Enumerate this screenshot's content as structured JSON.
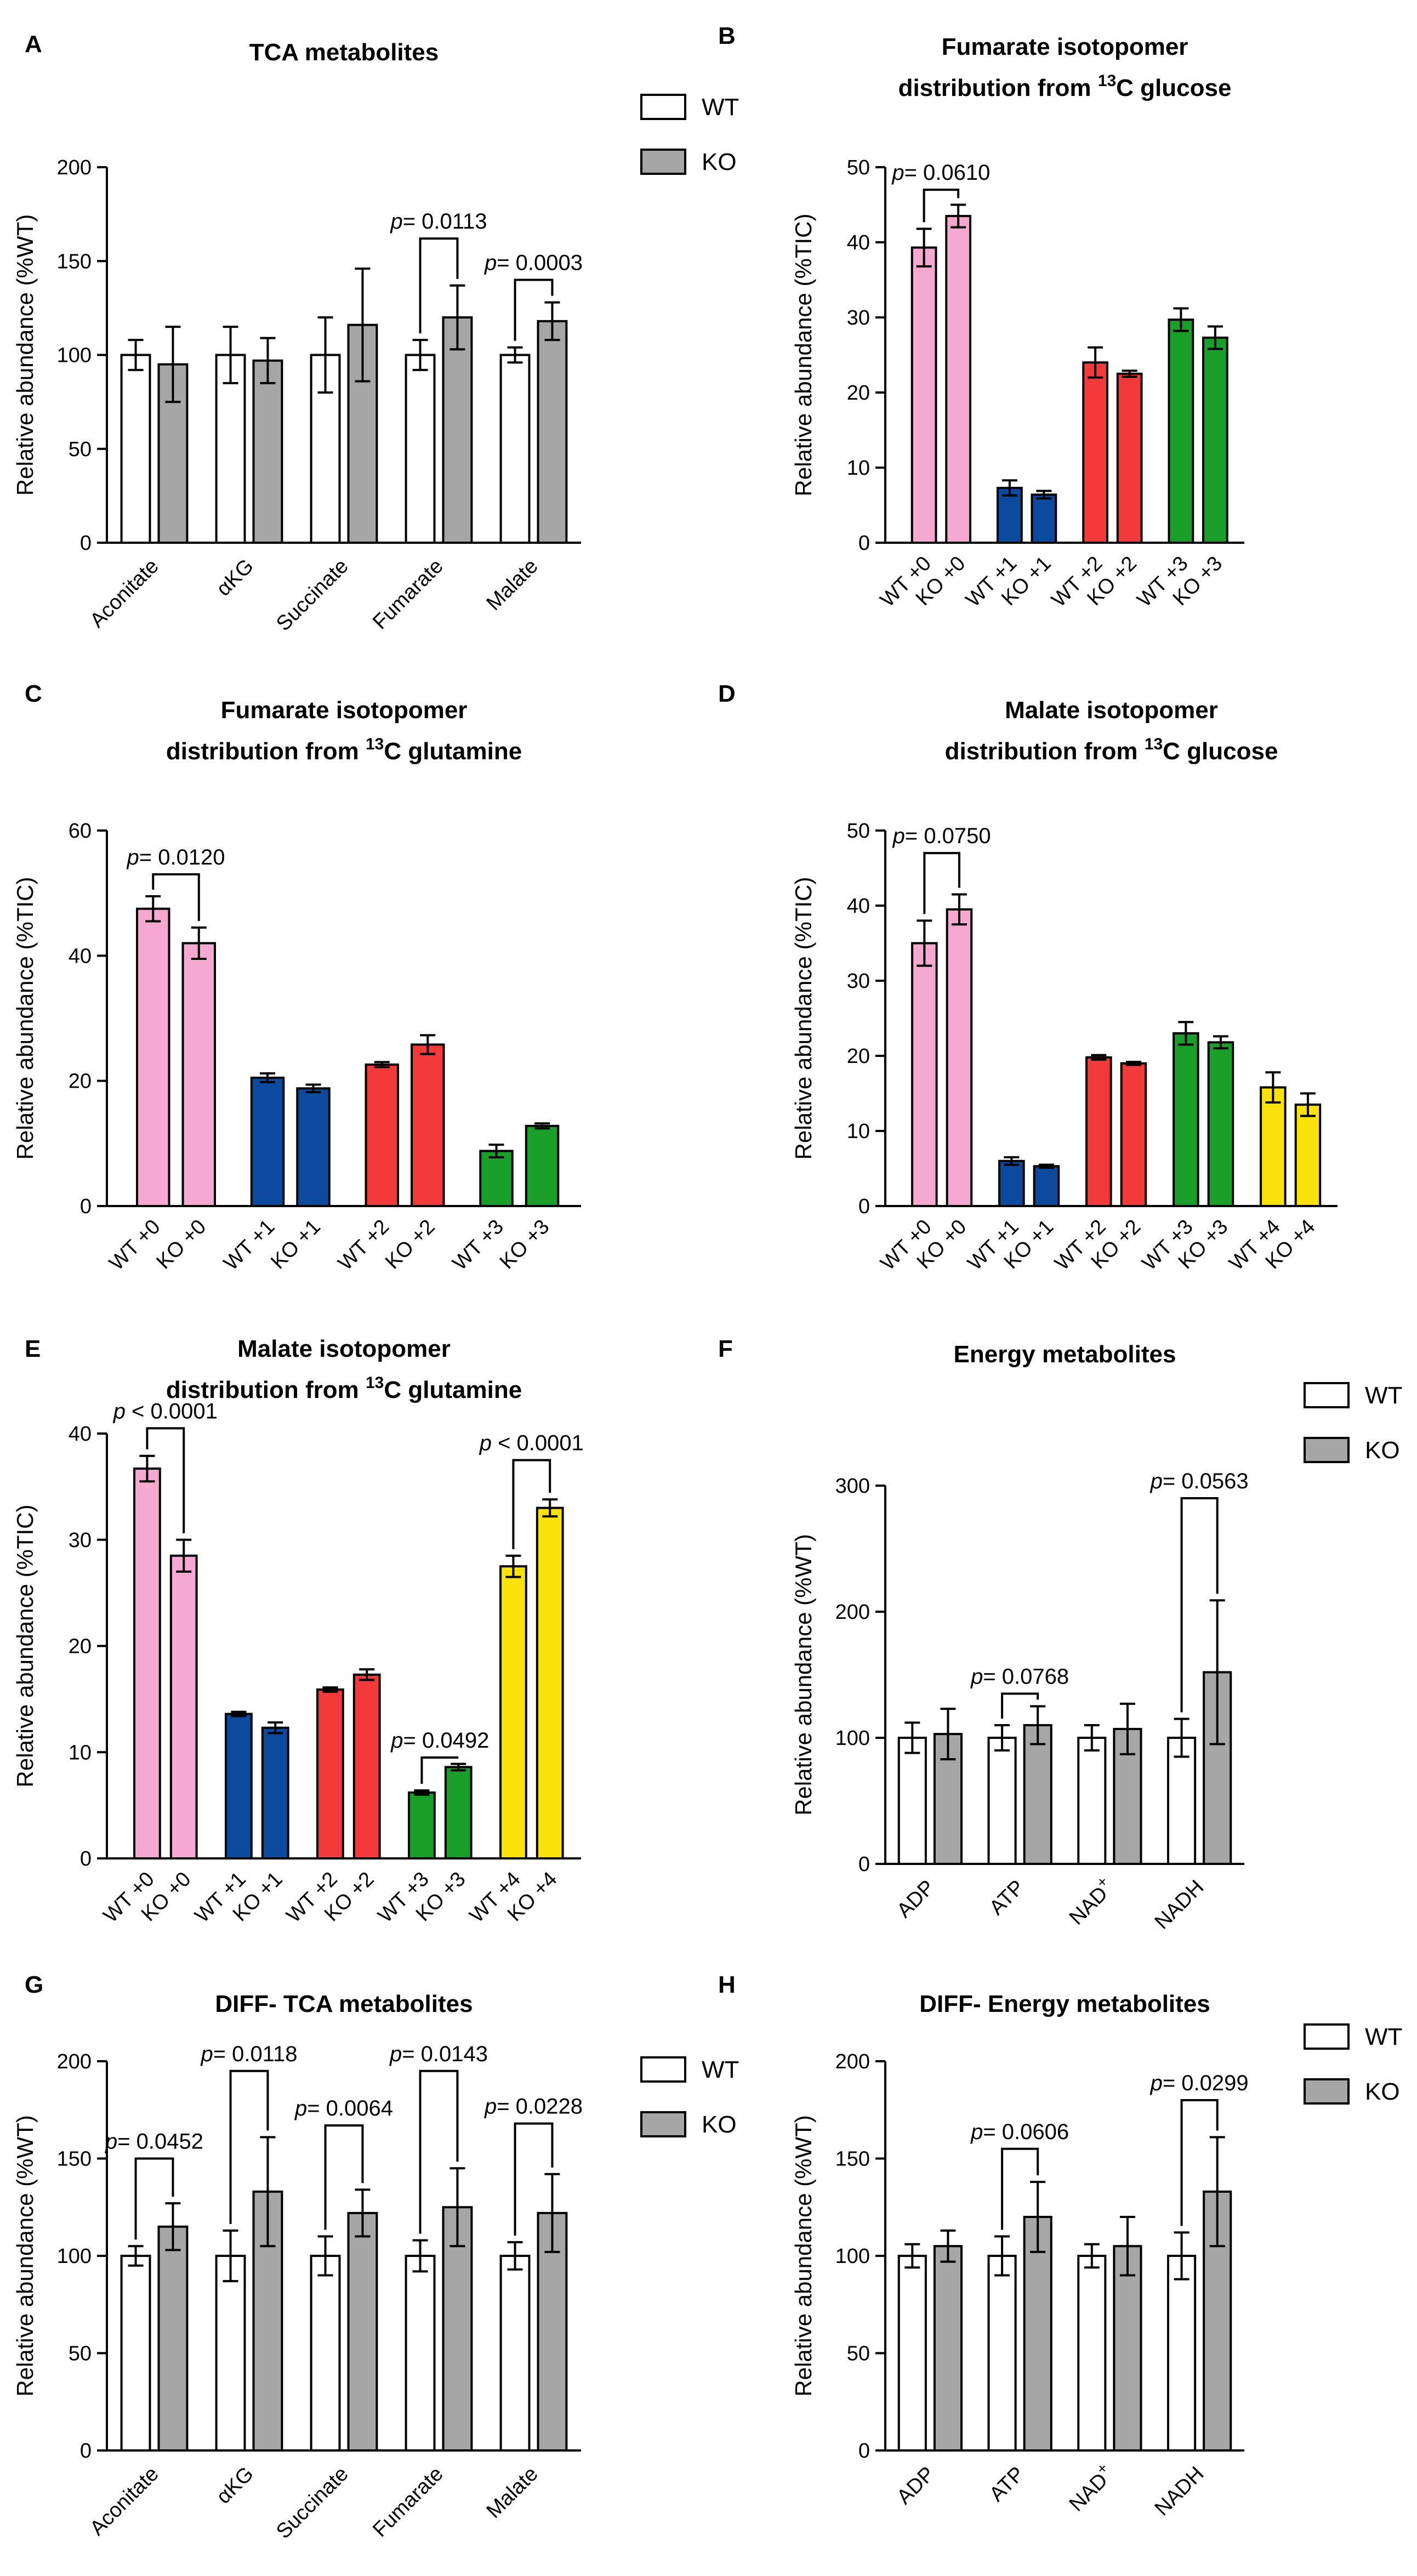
{
  "colors": {
    "wt_fill": "#ffffff",
    "ko_fill": "#a6a6a6",
    "iso0": "#f5a8d0",
    "iso1": "#0b4a9c",
    "iso2": "#f23a3a",
    "iso3": "#1a9e2a",
    "iso4": "#fae10a"
  },
  "chart_data": [
    {
      "id": "A",
      "type": "bar",
      "letter": "A",
      "title": [
        "TCA metabolites"
      ],
      "ylabel": "Relative abundance (%WT)",
      "ylim": [
        0,
        200
      ],
      "yticks": [
        0,
        50,
        100,
        150,
        200
      ],
      "legend": [
        "WT",
        "KO"
      ],
      "legend_position": "top-right",
      "categories": [
        "Aconitate",
        "αKG",
        "Succinate",
        "Fumarate",
        "Malate"
      ],
      "series": [
        {
          "name": "WT",
          "values": [
            100,
            100,
            100,
            100,
            100
          ],
          "sd": [
            8,
            15,
            20,
            8,
            4
          ]
        },
        {
          "name": "KO",
          "values": [
            95,
            97,
            116,
            120,
            118
          ],
          "sd": [
            20,
            12,
            30,
            17,
            10
          ]
        }
      ],
      "pvalues": [
        {
          "text": "p= 0.0113",
          "category": 3,
          "y": 162
        },
        {
          "text": "p= 0.0003",
          "category": 4,
          "y": 140
        }
      ]
    },
    {
      "id": "B",
      "type": "bar",
      "letter": "B",
      "title": [
        "Fumarate isotopomer",
        "distribution from 13C glucose"
      ],
      "ylabel": "Relative abundance (%TIC)",
      "ylim": [
        0,
        50
      ],
      "yticks": [
        0,
        10,
        20,
        30,
        40,
        50
      ],
      "categories": [
        "WT +0",
        "KO +0",
        "WT +1",
        "KO +1",
        "WT +2",
        "KO +2",
        "WT +3",
        "KO +3"
      ],
      "values": [
        39.3,
        43.5,
        7.3,
        6.4,
        24,
        22.5,
        29.7,
        27.3
      ],
      "sd": [
        2.5,
        1.5,
        1,
        0.5,
        2,
        0.4,
        1.5,
        1.5
      ],
      "color_keys": [
        "iso0",
        "iso0",
        "iso1",
        "iso1",
        "iso2",
        "iso2",
        "iso3",
        "iso3"
      ],
      "pvalues": [
        {
          "text": "p= 0.0610",
          "between": [
            0,
            1
          ],
          "y": 47
        }
      ]
    },
    {
      "id": "C",
      "type": "bar",
      "letter": "C",
      "title": [
        "Fumarate isotopomer",
        "distribution from 13C glutamine"
      ],
      "ylabel": "Relative abundance (%TIC)",
      "ylim": [
        0,
        60
      ],
      "yticks": [
        0,
        20,
        40,
        60
      ],
      "categories": [
        "WT +0",
        "KO +0",
        "WT +1",
        "KO +1",
        "WT +2",
        "KO +2",
        "WT +3",
        "KO +3"
      ],
      "values": [
        47.5,
        42,
        20.5,
        18.8,
        22.6,
        25.8,
        8.8,
        12.8
      ],
      "sd": [
        2,
        2.5,
        0.7,
        0.6,
        0.4,
        1.5,
        1,
        0.4
      ],
      "color_keys": [
        "iso0",
        "iso0",
        "iso1",
        "iso1",
        "iso2",
        "iso2",
        "iso3",
        "iso3"
      ],
      "pvalues": [
        {
          "text": "p= 0.0120",
          "between": [
            0,
            1
          ],
          "y": 53
        }
      ]
    },
    {
      "id": "D",
      "type": "bar",
      "letter": "D",
      "title": [
        "Malate isotopomer",
        "distribution from 13C glucose"
      ],
      "ylabel": "Relative abundance (%TIC)",
      "ylim": [
        0,
        50
      ],
      "yticks": [
        0,
        10,
        20,
        30,
        40,
        50
      ],
      "categories": [
        "WT +0",
        "KO +0",
        "WT +1",
        "KO +1",
        "WT +2",
        "KO +2",
        "WT +3",
        "KO +3",
        "WT +4",
        "KO +4"
      ],
      "values": [
        35,
        39.5,
        6,
        5.3,
        19.8,
        19,
        23,
        21.8,
        15.8,
        13.5
      ],
      "sd": [
        3,
        2,
        0.5,
        0.2,
        0.3,
        0.2,
        1.5,
        0.8,
        2,
        1.5
      ],
      "color_keys": [
        "iso0",
        "iso0",
        "iso1",
        "iso1",
        "iso2",
        "iso2",
        "iso3",
        "iso3",
        "iso4",
        "iso4"
      ],
      "pvalues": [
        {
          "text": "p= 0.0750",
          "between": [
            0,
            1
          ],
          "y": 47
        }
      ]
    },
    {
      "id": "E",
      "type": "bar",
      "letter": "E",
      "title": [
        "Malate isotopomer",
        "distribution from 13C glutamine"
      ],
      "ylabel": "Relative abundance (%TIC)",
      "ylim": [
        0,
        40
      ],
      "yticks": [
        0,
        10,
        20,
        30,
        40
      ],
      "categories": [
        "WT +0",
        "KO +0",
        "WT +1",
        "KO +1",
        "WT +2",
        "KO +2",
        "WT +3",
        "KO +3",
        "WT +4",
        "KO +4"
      ],
      "values": [
        36.7,
        28.5,
        13.6,
        12.3,
        15.9,
        17.3,
        6.2,
        8.6,
        27.5,
        33
      ],
      "sd": [
        1.2,
        1.5,
        0.2,
        0.5,
        0.2,
        0.5,
        0.2,
        0.3,
        1,
        0.8
      ],
      "color_keys": [
        "iso0",
        "iso0",
        "iso1",
        "iso1",
        "iso2",
        "iso2",
        "iso3",
        "iso3",
        "iso4",
        "iso4"
      ],
      "pvalues": [
        {
          "text": "p < 0.0001",
          "between": [
            0,
            1
          ],
          "y": 40.5
        },
        {
          "text": "p= 0.0492",
          "between": [
            6,
            7
          ],
          "y": 9.5
        },
        {
          "text": "p < 0.0001",
          "between": [
            8,
            9
          ],
          "y": 37.5
        }
      ]
    },
    {
      "id": "F",
      "type": "bar",
      "letter": "F",
      "title": [
        "Energy metabolites"
      ],
      "ylabel": "Relative abundance (%WT)",
      "ylim": [
        0,
        300
      ],
      "yticks": [
        0,
        100,
        200,
        300
      ],
      "legend": [
        "WT",
        "KO"
      ],
      "legend_position": "top-right",
      "categories": [
        "ADP",
        "ATP",
        "NAD+",
        "NADH"
      ],
      "series": [
        {
          "name": "WT",
          "values": [
            100,
            100,
            100,
            100
          ],
          "sd": [
            12,
            10,
            10,
            15
          ]
        },
        {
          "name": "KO",
          "values": [
            103,
            110,
            107,
            152
          ],
          "sd": [
            20,
            15,
            20,
            57
          ]
        }
      ],
      "pvalues": [
        {
          "text": "p= 0.0768",
          "category": 1,
          "y": 135
        },
        {
          "text": "p= 0.0563",
          "category": 3,
          "y": 290
        }
      ]
    },
    {
      "id": "G",
      "type": "bar",
      "letter": "G",
      "title": [
        "DIFF- TCA metabolites"
      ],
      "ylabel": "Relative abundance (%WT)",
      "ylim": [
        0,
        200
      ],
      "yticks": [
        0,
        50,
        100,
        150,
        200
      ],
      "legend": [
        "WT",
        "KO"
      ],
      "legend_position": "top-right",
      "categories": [
        "Aconitate",
        "αKG",
        "Succinate",
        "Fumarate",
        "Malate"
      ],
      "series": [
        {
          "name": "WT",
          "values": [
            100,
            100,
            100,
            100,
            100
          ],
          "sd": [
            5,
            13,
            10,
            8,
            7
          ]
        },
        {
          "name": "KO",
          "values": [
            115,
            133,
            122,
            125,
            122
          ],
          "sd": [
            12,
            28,
            12,
            20,
            20
          ]
        }
      ],
      "pvalues": [
        {
          "text": "p= 0.0452",
          "category": 0,
          "y": 150
        },
        {
          "text": "p= 0.0118",
          "category": 1,
          "y": 195
        },
        {
          "text": "p= 0.0064",
          "category": 2,
          "y": 167
        },
        {
          "text": "p= 0.0143",
          "category": 3,
          "y": 195
        },
        {
          "text": "p= 0.0228",
          "category": 4,
          "y": 168
        }
      ]
    },
    {
      "id": "H",
      "type": "bar",
      "letter": "H",
      "title": [
        "DIFF- Energy metabolites"
      ],
      "ylabel": "Relative abundance (%WT)",
      "ylim": [
        0,
        200
      ],
      "yticks": [
        0,
        50,
        100,
        150,
        200
      ],
      "legend": [
        "WT",
        "KO"
      ],
      "legend_position": "top-right",
      "categories": [
        "ADP",
        "ATP",
        "NAD+",
        "NADH"
      ],
      "series": [
        {
          "name": "WT",
          "values": [
            100,
            100,
            100,
            100
          ],
          "sd": [
            6,
            10,
            6,
            12
          ]
        },
        {
          "name": "KO",
          "values": [
            105,
            120,
            105,
            133
          ],
          "sd": [
            8,
            18,
            15,
            28
          ]
        }
      ],
      "pvalues": [
        {
          "text": "p= 0.0606",
          "category": 1,
          "y": 155
        },
        {
          "text": "p= 0.0299",
          "category": 3,
          "y": 180
        }
      ]
    }
  ]
}
